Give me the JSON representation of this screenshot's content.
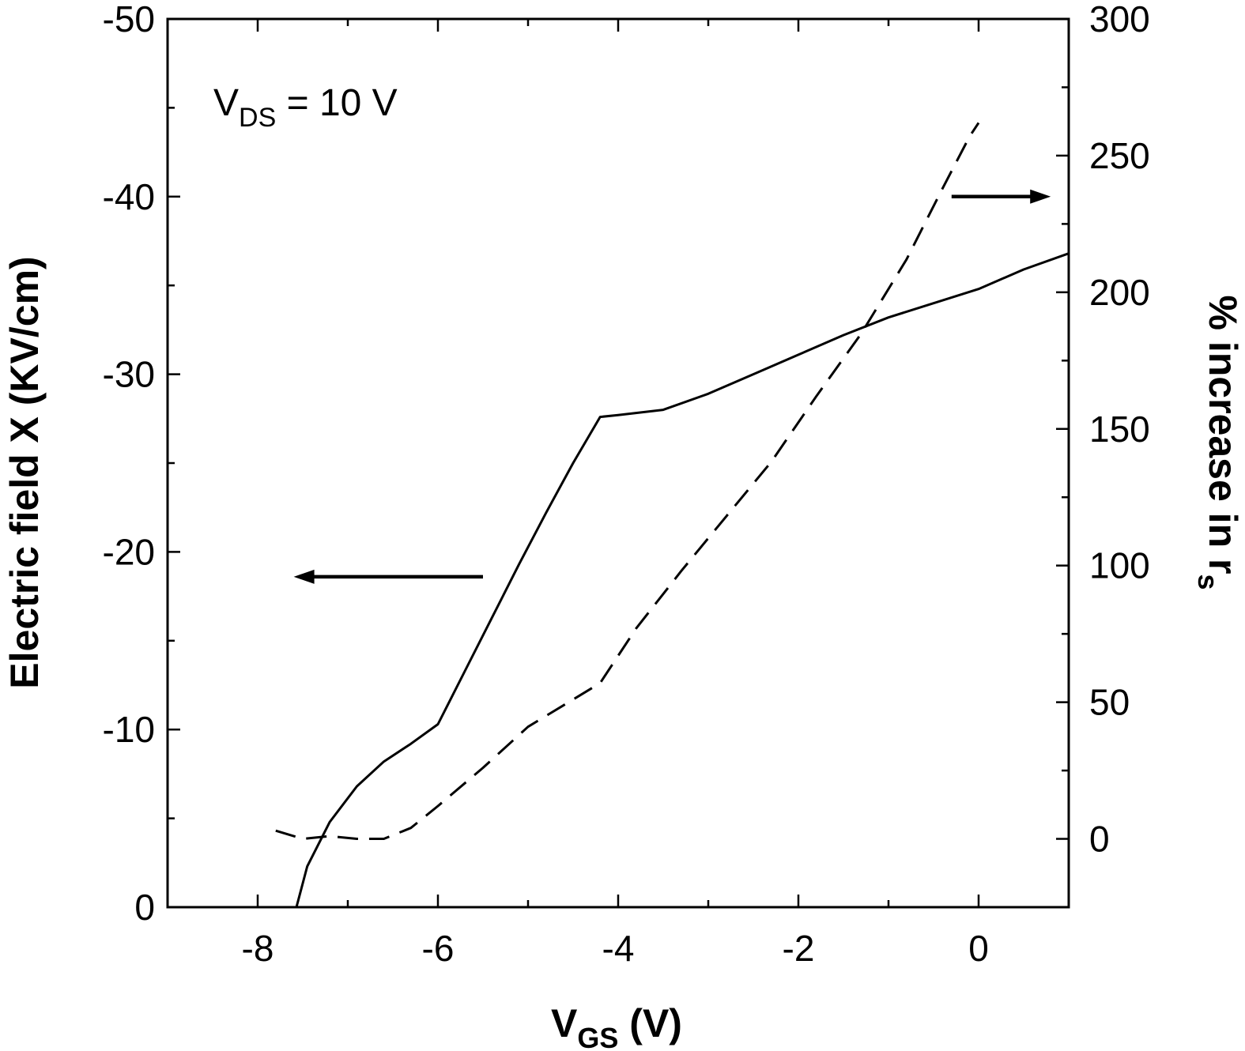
{
  "chart_data": {
    "type": "line",
    "x_axis": {
      "label_main": "V",
      "label_sub": "GS",
      "label_tail": " (V)",
      "range": [
        -9,
        1
      ],
      "ticks": [
        -8,
        -6,
        -4,
        -2,
        0
      ],
      "tick_labels": [
        "-8",
        "-6",
        "-4",
        "-2",
        "0"
      ]
    },
    "y_left_axis": {
      "label": "Electric field X (KV/cm)",
      "range": [
        0,
        -50
      ],
      "ticks": [
        0,
        -10,
        -20,
        -30,
        -40,
        -50
      ],
      "tick_labels": [
        "0",
        "-10",
        "-20",
        "-30",
        "-40",
        "-50"
      ]
    },
    "y_right_axis": {
      "label_main": "% increase in r",
      "label_sub": "s",
      "range": [
        -25,
        300
      ],
      "ticks": [
        0,
        50,
        100,
        150,
        200,
        250,
        300
      ],
      "tick_labels": [
        "0",
        "50",
        "100",
        "150",
        "200",
        "250",
        "300"
      ]
    },
    "annotation": {
      "main": "V",
      "sub": "DS",
      "tail": " = 10 V"
    },
    "series": [
      {
        "name": "Electric field",
        "axis": "left",
        "style": "solid",
        "x": [
          -7.57,
          -7.45,
          -7.2,
          -6.9,
          -6.6,
          -6.3,
          -6.0,
          -5.7,
          -5.4,
          -5.1,
          -4.8,
          -4.5,
          -4.2,
          -4.0,
          -3.5,
          -3.0,
          -2.5,
          -2.0,
          -1.5,
          -1.0,
          -0.5,
          0.0,
          0.5,
          1.0
        ],
        "y": [
          0,
          -2.3,
          -4.8,
          -6.8,
          -8.2,
          -9.2,
          -10.3,
          -13.3,
          -16.3,
          -19.3,
          -22.2,
          -25.0,
          -27.6,
          -27.7,
          -28.0,
          -28.9,
          -30.0,
          -31.1,
          -32.2,
          -33.2,
          -34.0,
          -34.8,
          -35.9,
          -36.8
        ]
      },
      {
        "name": "% increase in r_s",
        "axis": "right",
        "style": "dashed",
        "x": [
          -7.8,
          -7.5,
          -7.2,
          -6.9,
          -6.6,
          -6.3,
          -6.0,
          -5.5,
          -5.0,
          -4.5,
          -4.2,
          -3.8,
          -3.3,
          -2.8,
          -2.3,
          -1.8,
          -1.3,
          -0.8,
          -0.4,
          -0.1,
          0.0
        ],
        "y": [
          3,
          0,
          1,
          0,
          0,
          4,
          12,
          26,
          41,
          51,
          57,
          77,
          98,
          118,
          138,
          162,
          185,
          212,
          238,
          257,
          262
        ]
      }
    ],
    "arrows": [
      {
        "points_to": "left axis",
        "x_from": -5.5,
        "x_to": -7.6,
        "y_left": -18.6
      },
      {
        "points_to": "right axis",
        "x_from": -0.3,
        "x_to": 0.8,
        "y_right": 235
      }
    ]
  }
}
